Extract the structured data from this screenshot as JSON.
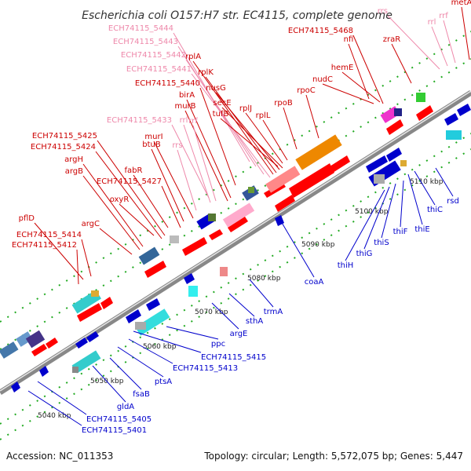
{
  "title": "Escherichia coli O157:H7 str. EC4115, complete genome",
  "footer": {
    "accession": "Accession: NC_011353",
    "summary": "Topology: circular; Length: 5,572,075 bp; Genes: 5,447"
  },
  "colors": {
    "forward": "#ff0000",
    "reverse": "#0000cc",
    "rna": "#ee88aa",
    "backbone": "#888888",
    "gc": "#22aa22"
  },
  "ticks": [
    "5040 kbp",
    "5050 kbp",
    "5060 kbp",
    "5070 kbp",
    "5080 kbp",
    "5090 kbp",
    "5100 kbp",
    "5110 kbp"
  ],
  "labels": {
    "top": [
      {
        "text": "ECH74115_5444",
        "color": "#ee88aa"
      },
      {
        "text": "ECH74115_5443",
        "color": "#ee88aa"
      },
      {
        "text": "ECH74115_5442",
        "color": "#ee88aa"
      },
      {
        "text": "ECH74115_5441",
        "color": "#ee88aa"
      },
      {
        "text": "ECH74115_5440",
        "color": "#cc0000"
      },
      {
        "text": "ECH74115_5433",
        "color": "#ee88aa"
      },
      {
        "text": "rplA",
        "color": "#cc0000"
      },
      {
        "text": "rplK",
        "color": "#cc0000"
      },
      {
        "text": "nusG",
        "color": "#cc0000"
      },
      {
        "text": "secE",
        "color": "#cc0000"
      },
      {
        "text": "tufB",
        "color": "#cc0000"
      },
      {
        "text": "birA",
        "color": "#cc0000"
      },
      {
        "text": "murB",
        "color": "#cc0000"
      },
      {
        "text": "rrl",
        "color": "#ee88aa"
      },
      {
        "text": "rrf",
        "color": "#ee88aa"
      },
      {
        "text": "rplJ",
        "color": "#cc0000"
      },
      {
        "text": "rplL",
        "color": "#cc0000"
      },
      {
        "text": "rpoB",
        "color": "#cc0000"
      },
      {
        "text": "rpoC",
        "color": "#cc0000"
      },
      {
        "text": "murI",
        "color": "#cc0000"
      },
      {
        "text": "btuB",
        "color": "#cc0000"
      },
      {
        "text": "rrs",
        "color": "#ee88aa"
      },
      {
        "text": "ECH74115_5425",
        "color": "#cc0000"
      },
      {
        "text": "ECH74115_5424",
        "color": "#cc0000"
      },
      {
        "text": "fabR",
        "color": "#cc0000"
      },
      {
        "text": "argH",
        "color": "#cc0000"
      },
      {
        "text": "argB",
        "color": "#cc0000"
      },
      {
        "text": "ECH74115_5427",
        "color": "#cc0000"
      },
      {
        "text": "oxyR",
        "color": "#cc0000"
      },
      {
        "text": "argC",
        "color": "#cc0000"
      },
      {
        "text": "pflD",
        "color": "#cc0000"
      },
      {
        "text": "ECH74115_5414",
        "color": "#cc0000"
      },
      {
        "text": "ECH74115_5412",
        "color": "#cc0000"
      },
      {
        "text": "ECH74115_5468",
        "color": "#cc0000"
      },
      {
        "text": "nfi",
        "color": "#cc0000"
      },
      {
        "text": "hemE",
        "color": "#cc0000"
      },
      {
        "text": "nudC",
        "color": "#cc0000"
      },
      {
        "text": "zraR",
        "color": "#cc0000"
      },
      {
        "text": "rrs",
        "color": "#ee88aa"
      },
      {
        "text": "rrf",
        "color": "#ee88aa"
      },
      {
        "text": "rrl",
        "color": "#ee88aa"
      },
      {
        "text": "metA",
        "color": "#cc0000"
      }
    ],
    "bottom": [
      {
        "text": "rsd",
        "color": "#0000cc"
      },
      {
        "text": "thiC",
        "color": "#0000cc"
      },
      {
        "text": "thiE",
        "color": "#0000cc"
      },
      {
        "text": "thiF",
        "color": "#0000cc"
      },
      {
        "text": "thiS",
        "color": "#0000cc"
      },
      {
        "text": "thiG",
        "color": "#0000cc"
      },
      {
        "text": "thiH",
        "color": "#0000cc"
      },
      {
        "text": "coaA",
        "color": "#0000cc"
      },
      {
        "text": "trmA",
        "color": "#0000cc"
      },
      {
        "text": "sthA",
        "color": "#0000cc"
      },
      {
        "text": "argE",
        "color": "#0000cc"
      },
      {
        "text": "ppc",
        "color": "#0000cc"
      },
      {
        "text": "ECH74115_5415",
        "color": "#0000cc"
      },
      {
        "text": "ECH74115_5413",
        "color": "#0000cc"
      },
      {
        "text": "ptsA",
        "color": "#0000cc"
      },
      {
        "text": "fsaB",
        "color": "#0000cc"
      },
      {
        "text": "gldA",
        "color": "#0000cc"
      },
      {
        "text": "ECH74115_5405",
        "color": "#0000cc"
      },
      {
        "text": "ECH74115_5401",
        "color": "#0000cc"
      }
    ]
  }
}
